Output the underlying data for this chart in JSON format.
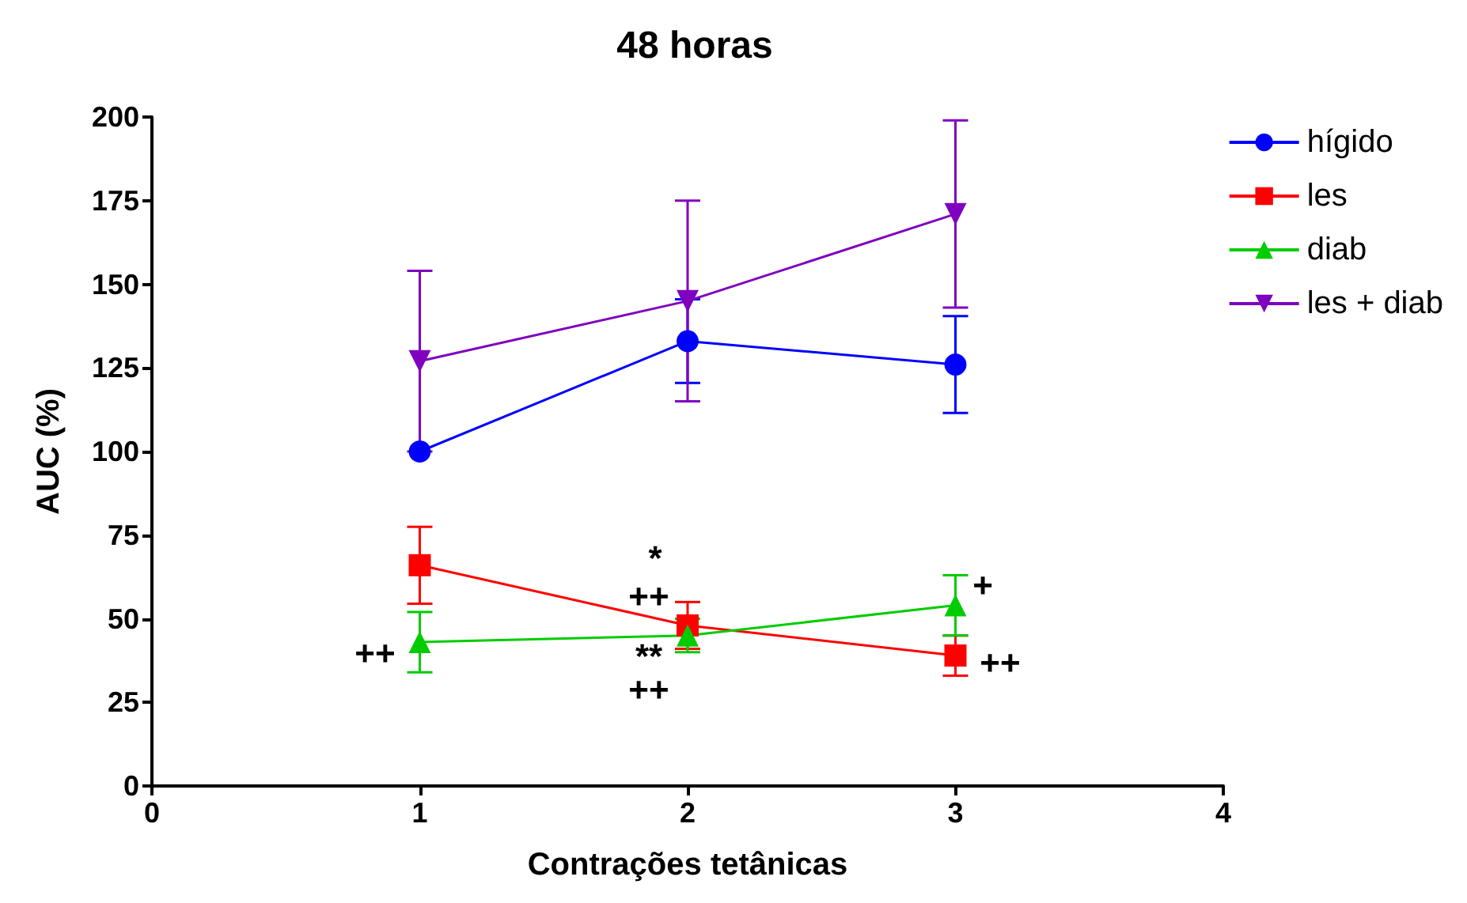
{
  "chart_data": {
    "type": "line",
    "title": "48 horas",
    "xlabel": "Contrações tetânicas",
    "ylabel": "AUC (%)",
    "xlim": [
      0,
      4
    ],
    "xticks": [
      0,
      1,
      2,
      3,
      4
    ],
    "ylim": [
      0,
      200
    ],
    "yticks": [
      0,
      25,
      50,
      75,
      100,
      125,
      150,
      175,
      200
    ],
    "grid": false,
    "legend": "top right",
    "series": [
      {
        "name": "hígido",
        "color": "#0000ff",
        "marker": "circle",
        "x": [
          1,
          2,
          3
        ],
        "values": [
          100,
          133,
          126
        ],
        "errors": [
          null,
          12.5,
          14.5
        ]
      },
      {
        "name": "les",
        "color": "#ff0000",
        "marker": "square",
        "x": [
          1,
          2,
          3
        ],
        "values": [
          66,
          48,
          39
        ],
        "errors": [
          11.5,
          7,
          6
        ]
      },
      {
        "name": "diab",
        "color": "#00cc00",
        "marker": "triangle",
        "x": [
          1,
          2,
          3
        ],
        "values": [
          43,
          45,
          54
        ],
        "errors": [
          9,
          5,
          9
        ]
      },
      {
        "name": "les + diab",
        "color": "#7f00bf",
        "marker": "triangle-down",
        "x": [
          1,
          2,
          3
        ],
        "values": [
          127,
          145,
          171
        ],
        "errors": [
          27,
          30,
          28
        ]
      }
    ],
    "annotations": [
      "*",
      "++",
      "**",
      "++",
      "++",
      "+",
      "++"
    ]
  }
}
